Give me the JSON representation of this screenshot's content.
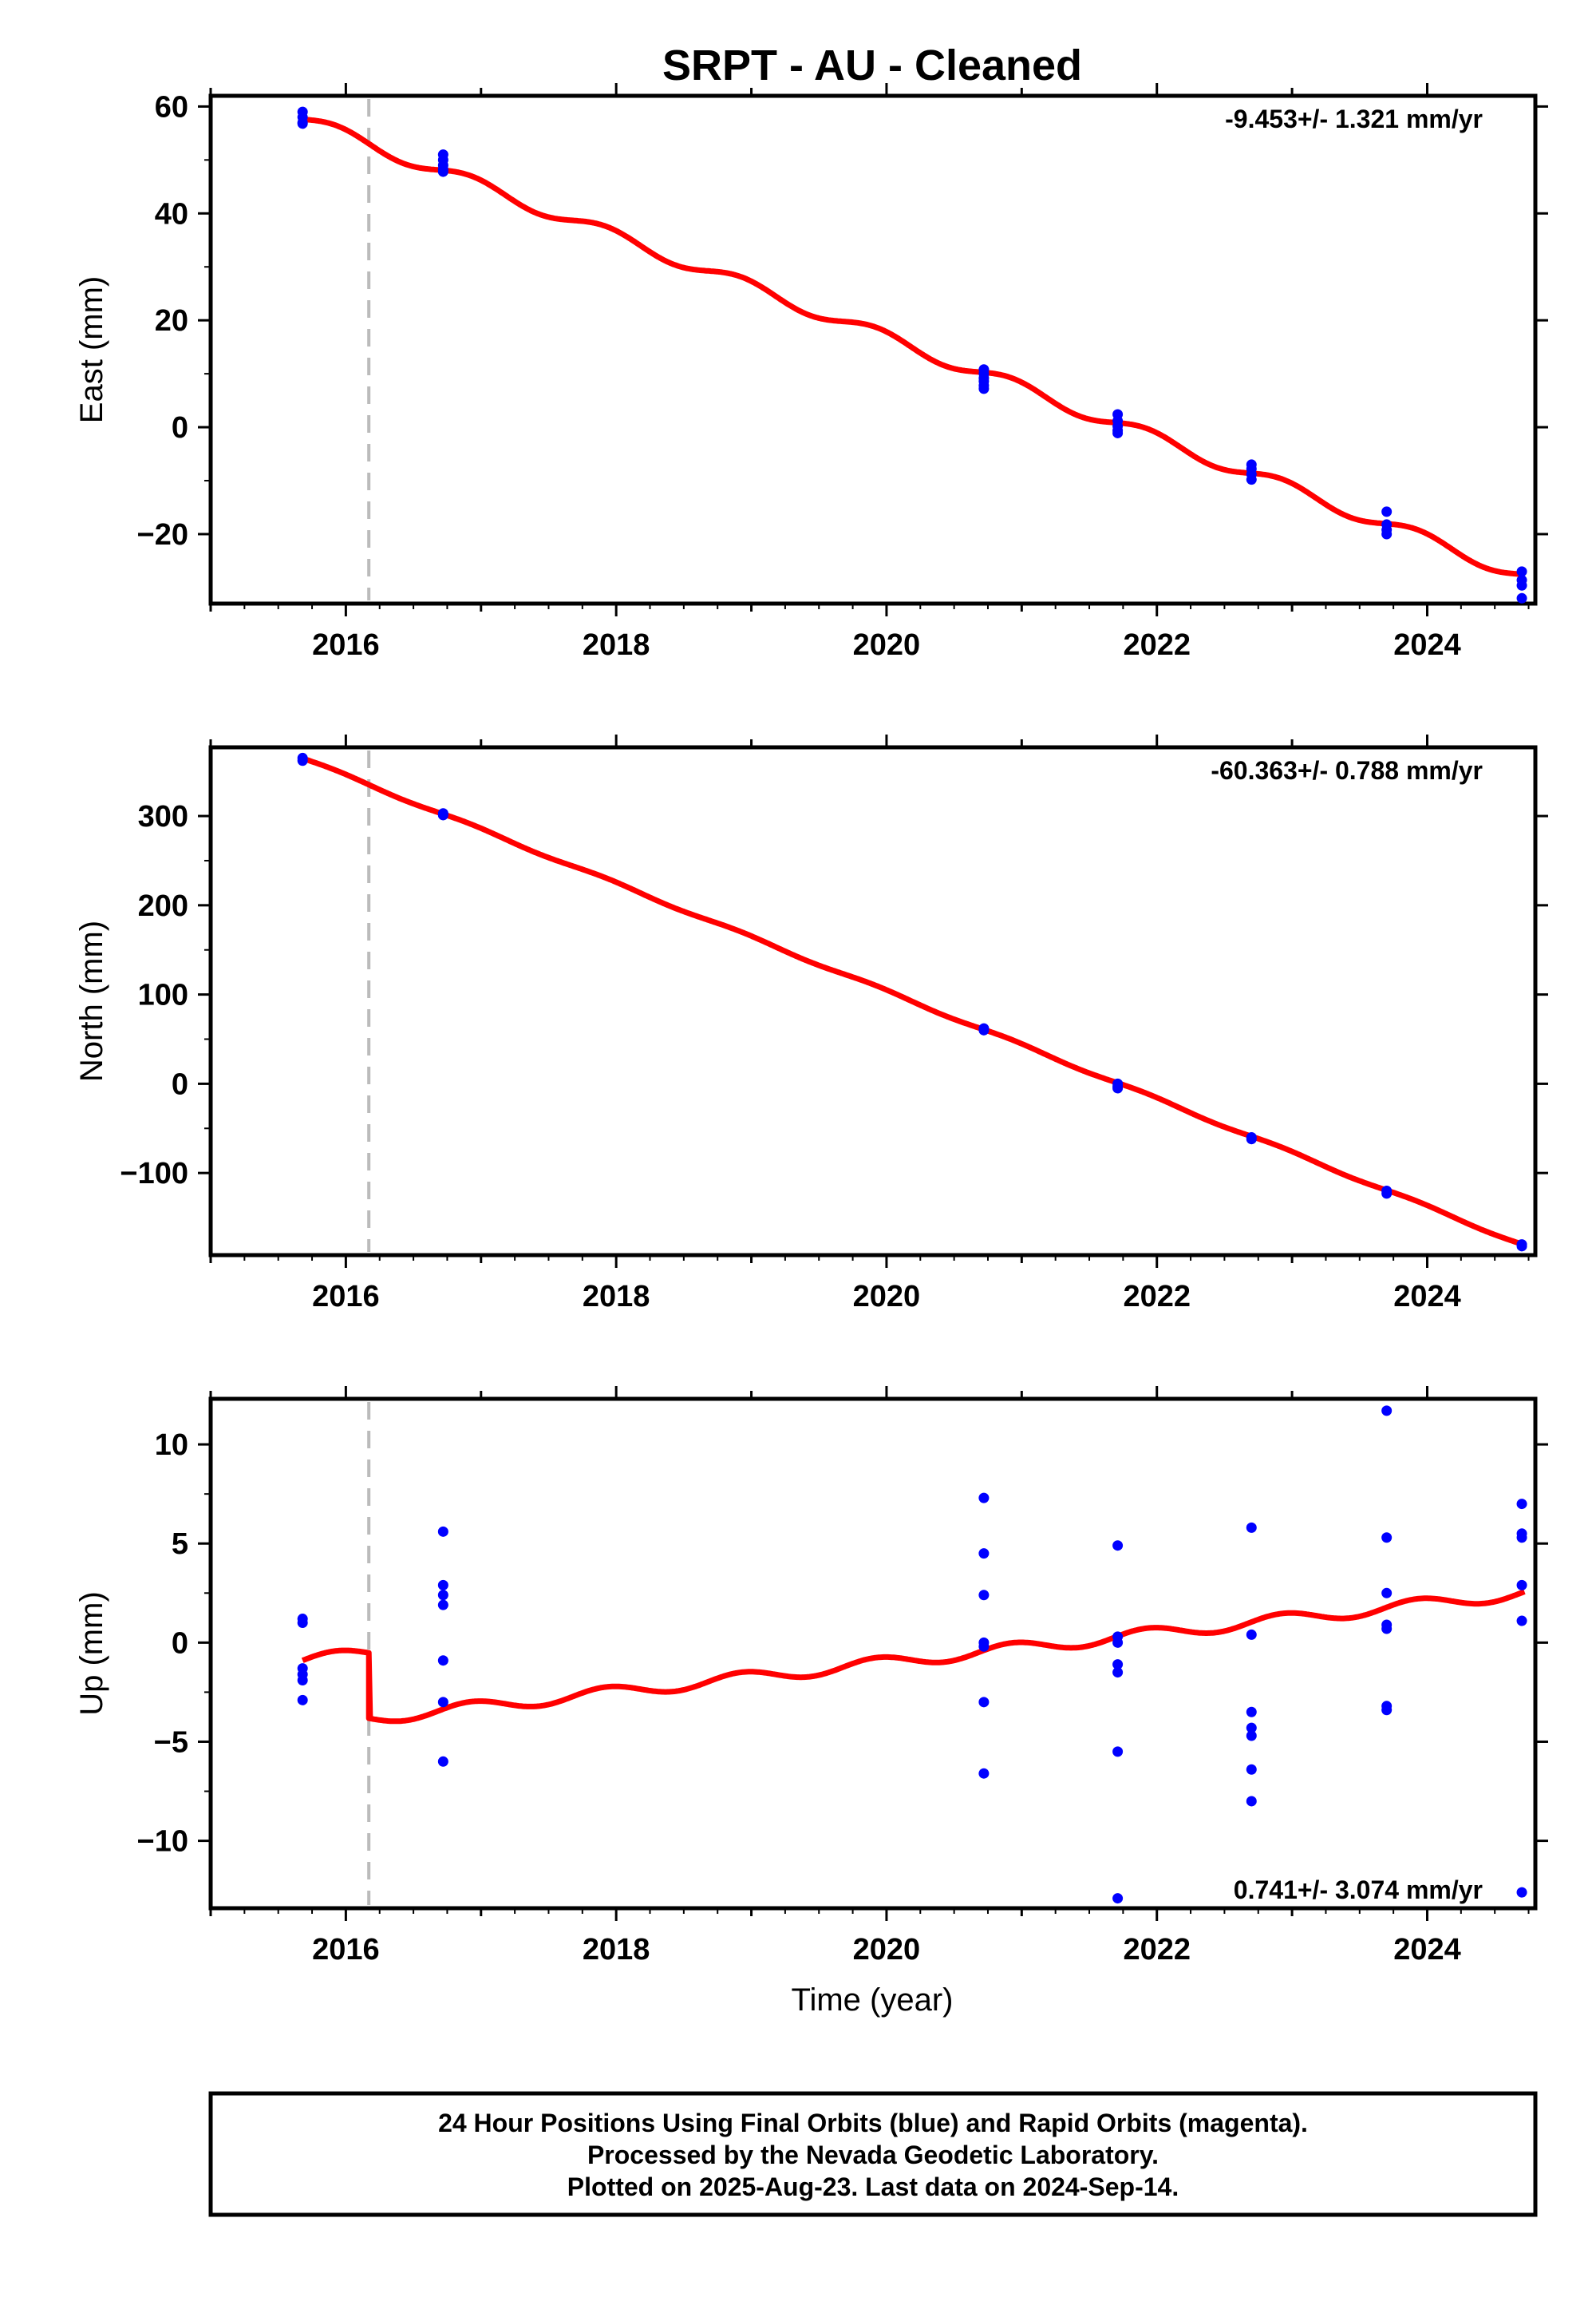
{
  "title": "SRPT  - AU - Cleaned",
  "x_label": "Time (year)",
  "footer": {
    "line1": "24 Hour Positions Using Final Orbits (blue) and Rapid Orbits (magenta).",
    "line2": "Processed by the Nevada Geodetic Laboratory.",
    "line3": "Plotted on 2025-Aug-23. Last data on 2024-Sep-14."
  },
  "colors": {
    "points": "#0000ff",
    "fit": "#ff0000",
    "offset_line": "#bbbbbb"
  },
  "chart_data": [
    {
      "type": "scatter",
      "ylabel": "East (mm)",
      "rate_text": "-9.453+/- 1.321 mm/yr",
      "xlim": [
        2015.0,
        2024.8
      ],
      "ylim": [
        -33,
        62
      ],
      "xticks": [
        2016,
        2018,
        2020,
        2022,
        2024
      ],
      "yticks": [
        -20,
        0,
        20,
        40,
        60
      ],
      "offset_year": 2016.17,
      "series": [
        {
          "x": [
            2015.68,
            2015.68,
            2015.68,
            2015.68,
            2016.72,
            2016.72,
            2016.72,
            2016.72,
            2016.72,
            2020.72,
            2020.72,
            2020.72,
            2020.72,
            2020.72,
            2020.72,
            2021.71,
            2021.71,
            2021.71,
            2021.71,
            2021.71,
            2022.7,
            2022.7,
            2022.7,
            2022.7,
            2023.7,
            2023.7,
            2023.7,
            2023.7,
            2024.7,
            2024.7,
            2024.7,
            2024.7
          ],
          "y": [
            59.0,
            58.0,
            57.0,
            56.8,
            51.0,
            50.0,
            49.0,
            48.2,
            47.8,
            10.8,
            10.0,
            9.2,
            8.6,
            7.8,
            7.2,
            2.4,
            1.2,
            0.2,
            -0.6,
            -1.1,
            -7.0,
            -7.8,
            -8.8,
            -9.8,
            -15.8,
            -18.2,
            -19.2,
            -20.0,
            -27.0,
            -28.6,
            -29.6,
            -32.0
          ]
        }
      ],
      "fit": {
        "offset": 57.6,
        "slope": -9.453,
        "step": 0.0,
        "amp": 1.2
      }
    },
    {
      "type": "scatter",
      "ylabel": "North (mm)",
      "rate_text": "-60.363+/- 0.788 mm/yr",
      "xlim": [
        2015.0,
        2024.8
      ],
      "ylim": [
        -192,
        377
      ],
      "xticks": [
        2016,
        2018,
        2020,
        2022,
        2024
      ],
      "yticks": [
        -100,
        0,
        100,
        200,
        300
      ],
      "offset_year": 2016.17,
      "series": [
        {
          "x": [
            2015.68,
            2015.68,
            2016.72,
            2016.72,
            2020.72,
            2020.72,
            2021.71,
            2021.71,
            2021.71,
            2022.7,
            2022.7,
            2023.7,
            2023.7,
            2024.7,
            2024.7
          ],
          "y": [
            365,
            362,
            303,
            301,
            62,
            60,
            0,
            -3,
            -5,
            -60,
            -62,
            -120,
            -123,
            -180,
            -182
          ]
        }
      ],
      "fit": {
        "offset": 364.6,
        "slope": -60.363,
        "step": 0.0,
        "amp": 1.5
      }
    },
    {
      "type": "scatter",
      "ylabel": "Up (mm)",
      "rate_text": "0.741+/- 3.074 mm/yr",
      "xlim": [
        2015.0,
        2024.8
      ],
      "ylim": [
        -13.4,
        12.3
      ],
      "xticks": [
        2016,
        2018,
        2020,
        2022,
        2024
      ],
      "yticks": [
        -10,
        -5,
        0,
        5,
        10
      ],
      "offset_year": 2016.17,
      "series": [
        {
          "x": [
            2015.68,
            2015.68,
            2015.68,
            2015.68,
            2015.68,
            2015.68,
            2016.72,
            2016.72,
            2016.72,
            2016.72,
            2016.72,
            2016.72,
            2016.72,
            2020.72,
            2020.72,
            2020.72,
            2020.72,
            2020.72,
            2020.72,
            2020.72,
            2021.71,
            2021.71,
            2021.71,
            2021.71,
            2021.71,
            2021.71,
            2021.71,
            2022.7,
            2022.7,
            2022.7,
            2022.7,
            2022.7,
            2022.7,
            2022.7,
            2023.7,
            2023.7,
            2023.7,
            2023.7,
            2023.7,
            2023.7,
            2023.7,
            2024.7,
            2024.7,
            2024.7,
            2024.7,
            2024.7,
            2024.7
          ],
          "y": [
            1.2,
            1.0,
            -1.3,
            -1.6,
            -1.9,
            -2.9,
            5.6,
            2.9,
            2.4,
            1.9,
            -0.9,
            -3.0,
            -6.0,
            7.3,
            4.5,
            2.4,
            0.0,
            -0.2,
            -3.0,
            -6.6,
            4.9,
            0.3,
            0.0,
            -1.1,
            -1.5,
            -5.5,
            -12.9,
            0.4,
            -3.5,
            -4.3,
            -4.7,
            -6.4,
            -8.0,
            5.8,
            5.3,
            2.5,
            0.9,
            0.7,
            -3.2,
            -3.4,
            11.7,
            7.0,
            5.5,
            5.3,
            2.9,
            1.1,
            -12.6
          ]
        }
      ],
      "fit": {
        "offset": -0.9,
        "slope": 0.741,
        "step": -3.3,
        "amp": 0.3
      }
    }
  ]
}
